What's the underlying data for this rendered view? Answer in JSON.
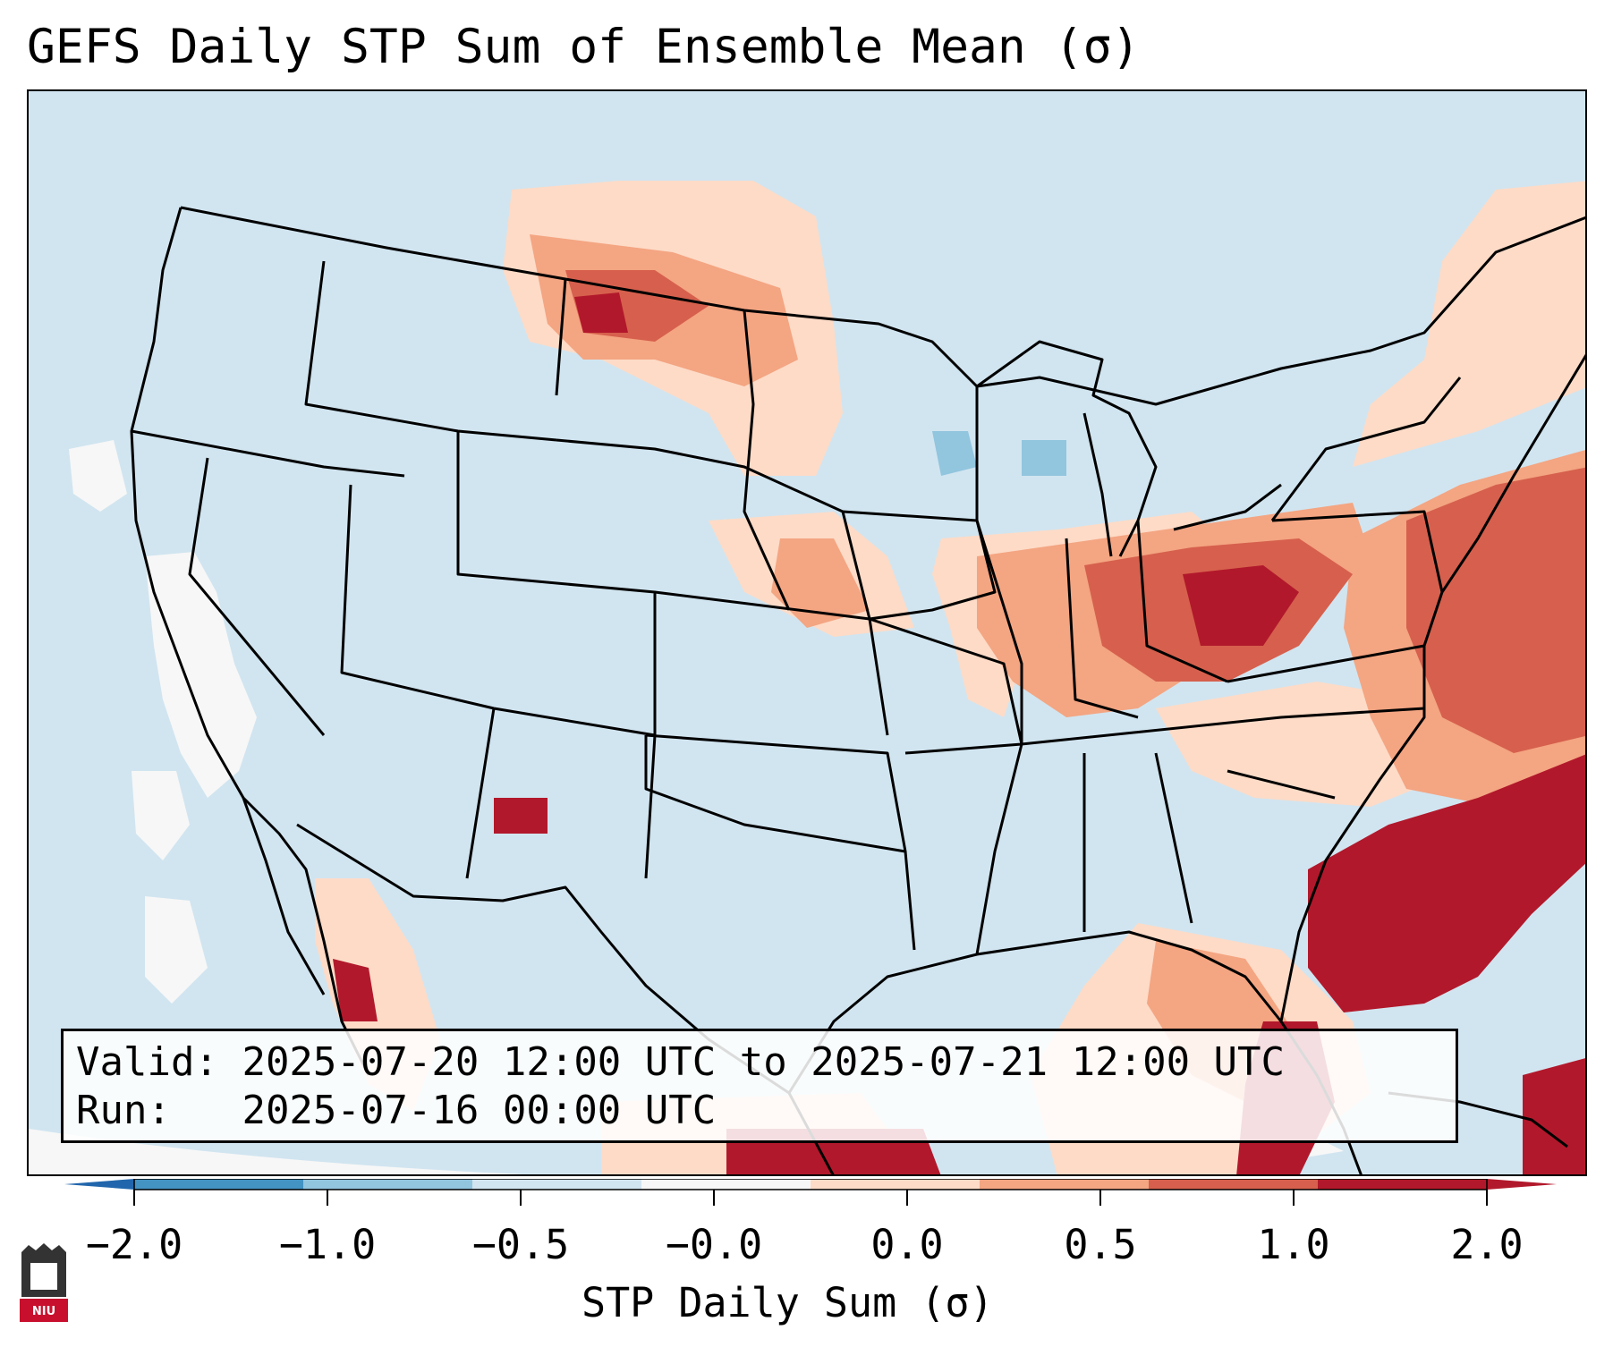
{
  "title": "GEFS Daily STP Sum of Ensemble Mean (σ)",
  "info": {
    "valid_label": "Valid:",
    "valid_value": "2025-07-20 12:00 UTC to 2025-07-21 12:00 UTC",
    "run_label": "Run:",
    "run_value": "2025-07-16 00:00 UTC"
  },
  "colorbar": {
    "label": "STP Daily Sum (σ)",
    "ticks": [
      "−2.0",
      "−1.0",
      "−0.5",
      "−0.0",
      "0.0",
      "0.5",
      "1.0",
      "2.0"
    ],
    "colors": [
      "#4393c3",
      "#92c5de",
      "#d1e5f0",
      "#f7f7f7",
      "#fddbc7",
      "#f4a582",
      "#d6604d",
      "#b2182b"
    ],
    "extend_low_color": "#2166ac",
    "extend_high_color": "#b2182b"
  },
  "map": {
    "background_color": "#d1e5f0",
    "line_color": "#000000",
    "regions": [
      {
        "name": "Eastern US & Atlantic",
        "level": "1.0 to 2.0",
        "color": "#d6604d"
      },
      {
        "name": "Southeast Atlantic Coast",
        "level": "above 2.0",
        "color": "#b2182b"
      },
      {
        "name": "Northern Plains",
        "level": "0.5 to 1.0",
        "color": "#f4a582"
      },
      {
        "name": "Pacific Ocean west of California",
        "level": "-0.0 to 0.0",
        "color": "#f7f7f7"
      }
    ]
  },
  "logo": {
    "text": "NIU"
  }
}
